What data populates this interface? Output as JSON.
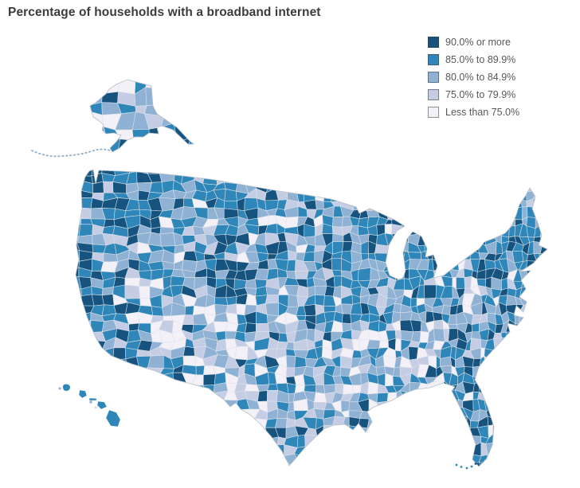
{
  "title": "Percentage of households with a broadband internet",
  "legend": {
    "items": [
      {
        "label": "90.0% or more",
        "color": "#16547F"
      },
      {
        "label": "85.0% to 89.9%",
        "color": "#2F87B9"
      },
      {
        "label": "80.0% to 84.9%",
        "color": "#8FB2D4"
      },
      {
        "label": "75.0% to 79.9%",
        "color": "#C5CDE5"
      },
      {
        "label": "Less than 75.0%",
        "color": "#F3F1F7"
      }
    ]
  },
  "chart_data": {
    "type": "choropleth",
    "title": "Percentage of households with a broadband internet",
    "geography": "United States counties (lower 48 with Alaska and Hawaii insets)",
    "measure": "Percent of households with a broadband internet subscription",
    "classes": [
      {
        "label": "90.0% or more",
        "color": "#16547F"
      },
      {
        "label": "85.0% to 89.9%",
        "color": "#2F87B9"
      },
      {
        "label": "80.0% to 84.9%",
        "color": "#8FB2D4"
      },
      {
        "label": "75.0% to 79.9%",
        "color": "#C5CDE5"
      },
      {
        "label": "Less than 75.0%",
        "color": "#F3F1F7"
      }
    ],
    "legend_position": "top-right",
    "observed_patterns": [
      "Darkest (90%+) counties cluster in the Northeast corridor, Colorado and Utah, Pacific coast metros, Minnesota/Wisconsin and Florida",
      "Lightest (<75%) counties concentrate in the Deep South, Appalachia, New Mexico/Arizona, west Texas and interior Alaska"
    ]
  }
}
